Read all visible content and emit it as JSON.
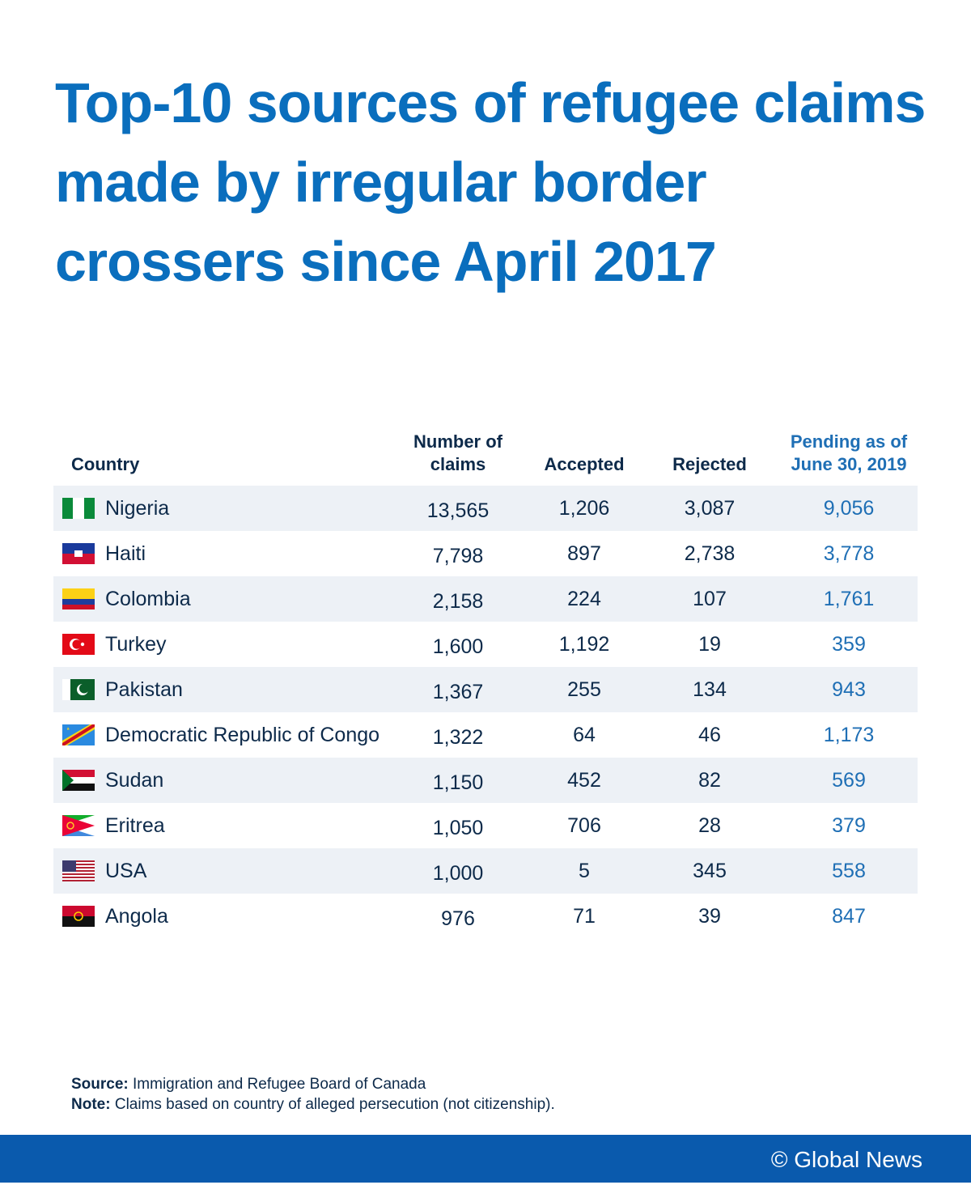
{
  "header": {
    "title": "Top-10 sources of refugee claims made by irregular border crossers since April 2017"
  },
  "table": {
    "columns": [
      "Country",
      "Number of claims",
      "Accepted",
      "Rejected",
      "Pending as of June 30, 2019"
    ],
    "rows": [
      [
        "Nigeria",
        "13,565",
        "1,206",
        "3,087",
        "9,056"
      ],
      [
        "Haiti",
        "7,798",
        "897",
        "2,738",
        "3,778"
      ],
      [
        "Colombia",
        "2,158",
        "224",
        "107",
        "1,761"
      ],
      [
        "Turkey",
        "1,600",
        "1,192",
        "19",
        "359"
      ],
      [
        "Pakistan",
        "1,367",
        "255",
        "134",
        "943"
      ],
      [
        "Democratic Republic of Congo",
        "1,322",
        "64",
        "46",
        "1,173"
      ],
      [
        "Sudan",
        "1,150",
        "452",
        "82",
        "569"
      ],
      [
        "Eritrea",
        "1,050",
        "706",
        "28",
        "379"
      ],
      [
        "USA",
        "1,000",
        "5",
        "345",
        "558"
      ],
      [
        "Angola",
        "976",
        "71",
        "39",
        "847"
      ]
    ]
  },
  "source": {
    "label": "Source:",
    "text": "Immigration and Refugee Board of Canada"
  },
  "note": {
    "label": "Note:",
    "text": "Claims based on country of alleged persecution (not citizenship)."
  },
  "footer": {
    "credit": "© Global News"
  }
}
